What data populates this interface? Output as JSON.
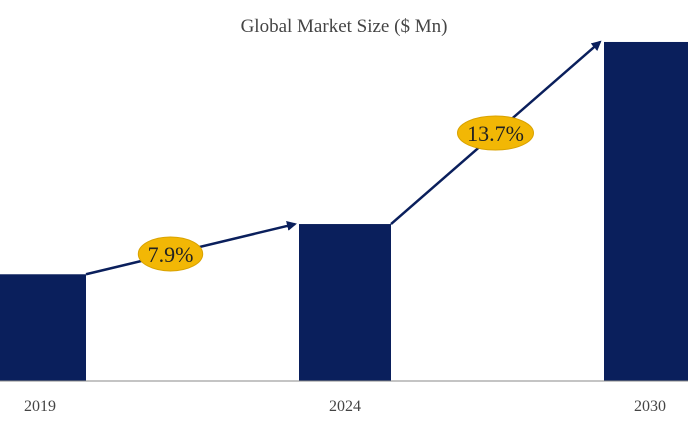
{
  "chart_data": {
    "type": "bar",
    "title": "Global Market Size ($ Mn)",
    "categories": [
      "2019",
      "2024",
      "2030"
    ],
    "values": [
      34,
      50,
      108
    ],
    "ylim": [
      0,
      115
    ],
    "xlabel": "",
    "ylabel": "",
    "grid": false,
    "legend": "none",
    "growth_labels": [
      {
        "text": "7.9%",
        "from": "2019",
        "to": "2024"
      },
      {
        "text": "13.7%",
        "from": "2024",
        "to": "2030"
      }
    ],
    "colors": {
      "bar": "#0a1f5c",
      "arrow": "#0a1f5c",
      "badge_fill": "#f2b705",
      "badge_stroke": "#d9a200",
      "axis": "#888888"
    }
  }
}
